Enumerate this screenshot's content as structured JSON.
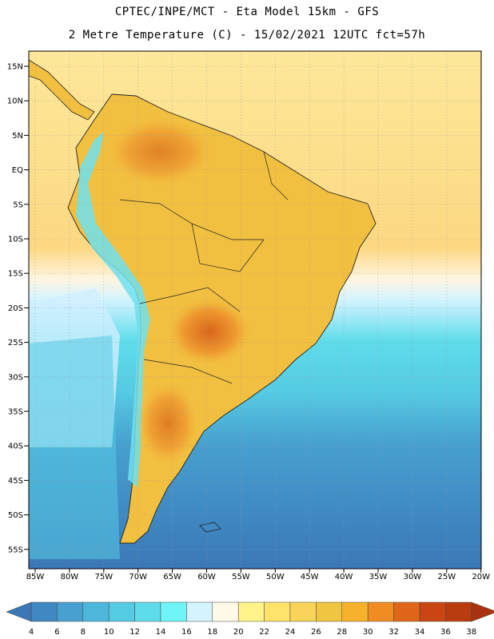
{
  "header": {
    "line1": "CPTEC/INPE/MCT -  Eta Model 15km - GFS",
    "line2": "2 Metre Temperature (C) - 15/02/2021 12UTC fct=57h"
  },
  "map": {
    "lat_labels": [
      "15N",
      "10N",
      "5N",
      "EQ",
      "5S",
      "10S",
      "15S",
      "20S",
      "25S",
      "30S",
      "35S",
      "40S",
      "45S",
      "50S",
      "55S"
    ],
    "lon_labels": [
      "85W",
      "80W",
      "75W",
      "70W",
      "65W",
      "60W",
      "55W",
      "50W",
      "45W",
      "40W",
      "35W",
      "30W",
      "25W",
      "20W"
    ],
    "ocean_color": "#3a9dcf",
    "land_color": "#f2c040",
    "grid": "dotted"
  },
  "colorbar": {
    "labels": [
      "4",
      "6",
      "8",
      "10",
      "12",
      "14",
      "16",
      "18",
      "20",
      "22",
      "24",
      "26",
      "28",
      "30",
      "32",
      "34",
      "36",
      "38"
    ],
    "colors": [
      "#3b78b5",
      "#3f88c2",
      "#47a0cf",
      "#4cb6db",
      "#55cae3",
      "#5fdcea",
      "#6ff5f8",
      "#d4f4ff",
      "#fff9e8",
      "#fff38a",
      "#fde36a",
      "#f8d558",
      "#f0c542",
      "#f6b22a",
      "#ef8d22",
      "#e0661a",
      "#c94612",
      "#b83c10",
      "#a8330e"
    ]
  }
}
